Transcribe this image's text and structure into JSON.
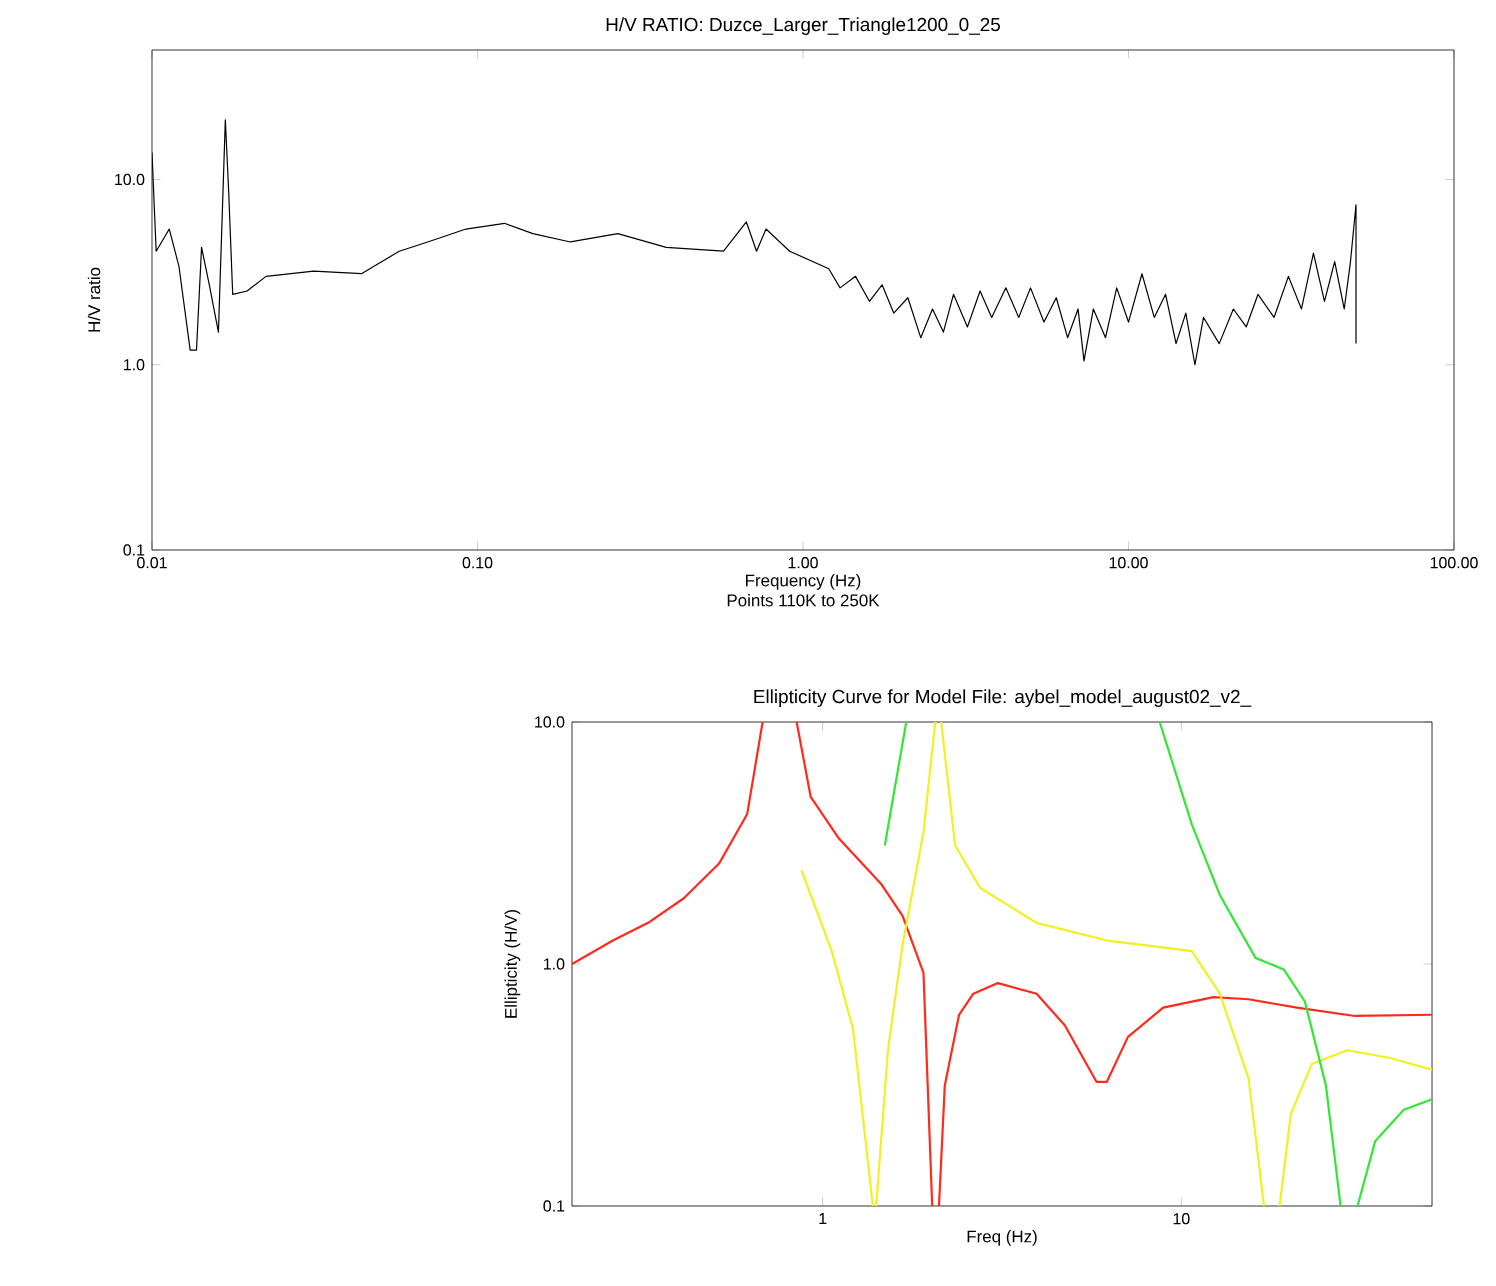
{
  "chart_data": [
    {
      "type": "line",
      "title": "H/V RATIO: Duzce_Larger_Triangle1200_0_25",
      "xlabel": "Frequency (Hz)",
      "ylabel": "H/V ratio",
      "annotations": [
        "Points 110K to 250K"
      ],
      "log": "xy",
      "xlim": [
        0.01,
        100
      ],
      "ylim": [
        0.1,
        50
      ],
      "xticks": [
        {
          "value": 0.01,
          "label": "0.01"
        },
        {
          "value": 0.1,
          "label": "0.10"
        },
        {
          "value": 1,
          "label": "1.00"
        },
        {
          "value": 10,
          "label": "10.00"
        },
        {
          "value": 100,
          "label": "100.00"
        }
      ],
      "yticks": [
        {
          "value": 0.1,
          "label": "0.1"
        },
        {
          "value": 1,
          "label": "1.0"
        },
        {
          "value": 10,
          "label": "10.0"
        }
      ],
      "series": [
        {
          "color": "#000000",
          "x": [
            0.01,
            0.0103,
            0.0113,
            0.0121,
            0.0131,
            0.0137,
            0.0142,
            0.015,
            0.016,
            0.0168,
            0.0172,
            0.0177,
            0.0196,
            0.0224,
            0.0314,
            0.044,
            0.0575,
            0.0703,
            0.0922,
            0.121,
            0.148,
            0.193,
            0.27,
            0.38,
            0.57,
            0.67,
            0.72,
            0.77,
            0.91,
            1.2,
            1.3,
            1.45,
            1.6,
            1.75,
            1.9,
            2.1,
            2.3,
            2.5,
            2.7,
            2.9,
            3.2,
            3.5,
            3.8,
            4.2,
            4.6,
            5.0,
            5.5,
            6.0,
            6.5,
            7.0,
            7.3,
            7.8,
            8.5,
            9.2,
            10,
            11,
            12,
            13,
            14,
            15,
            16,
            17,
            19,
            21,
            23,
            25,
            28,
            31,
            34,
            37,
            40,
            43,
            46,
            48,
            50,
            50
          ],
          "values": [
            14,
            4.1,
            5.4,
            3.4,
            1.2,
            1.2,
            4.3,
            2.7,
            1.5,
            21,
            8.7,
            2.4,
            2.5,
            3.0,
            3.2,
            3.1,
            4.1,
            4.6,
            5.4,
            5.8,
            5.1,
            4.6,
            5.1,
            4.3,
            4.1,
            5.9,
            4.1,
            5.4,
            4.1,
            3.3,
            2.6,
            3.0,
            2.2,
            2.7,
            1.9,
            2.3,
            1.4,
            2.0,
            1.5,
            2.4,
            1.6,
            2.5,
            1.8,
            2.6,
            1.8,
            2.6,
            1.7,
            2.3,
            1.4,
            2.0,
            1.05,
            2.0,
            1.4,
            2.6,
            1.7,
            3.1,
            1.8,
            2.4,
            1.3,
            1.9,
            1.0,
            1.8,
            1.3,
            2.0,
            1.6,
            2.4,
            1.8,
            3.0,
            2.0,
            4.0,
            2.2,
            3.6,
            2.0,
            3.5,
            7.3,
            1.3
          ]
        }
      ]
    },
    {
      "type": "line",
      "title": "Ellipticity Curve for Model File: aybel_model_august02_v2_",
      "xlabel": "Freq (Hz)",
      "ylabel": "Ellipticity (H/V)",
      "log": "xy",
      "xlim": [
        0.2,
        50
      ],
      "ylim": [
        0.1,
        10
      ],
      "xticks": [
        1,
        10
      ],
      "yticks": [
        {
          "value": 0.1,
          "label": "0.1"
        },
        {
          "value": 1,
          "label": "1.0"
        },
        {
          "value": 10,
          "label": "10.0"
        }
      ],
      "series": [
        {
          "color": "#ff2a1a",
          "x": [
            0.2,
            0.26,
            0.326,
            0.41,
            0.514,
            0.616,
            0.68,
            null,
            0.846,
            0.926,
            1.11,
            1.46,
            1.67,
            1.91,
            2.02,
            null,
            2.11,
            2.19,
            2.4,
            2.63,
            3.08,
            3.95,
            4.73,
            5.8,
            6.2,
            7.1,
            8.9,
            12.3,
            15.4,
            21,
            30.5,
            50
          ],
          "values": [
            1.0,
            1.25,
            1.48,
            1.87,
            2.6,
            4.17,
            10,
            null,
            10,
            4.9,
            3.3,
            2.13,
            1.58,
            0.92,
            0.1,
            null,
            0.1,
            0.315,
            0.617,
            0.754,
            0.834,
            0.754,
            0.558,
            0.326,
            0.326,
            0.5,
            0.66,
            0.73,
            0.715,
            0.66,
            0.61,
            0.617
          ]
        },
        {
          "color": "#f2f020",
          "x": [
            0.873,
            1.06,
            1.215,
            1.38,
            null,
            1.41,
            1.52,
            1.67,
            1.91,
            2.06,
            null,
            2.14,
            2.34,
            2.75,
            3.95,
            6.2,
            7.8,
            10.7,
            12.8,
            15.4,
            17,
            null,
            18.8,
            20.2,
            23.1,
            29,
            38,
            50
          ],
          "values": [
            2.44,
            1.13,
            0.54,
            0.1,
            null,
            0.1,
            0.44,
            1.2,
            3.5,
            10,
            null,
            10,
            3.09,
            2.06,
            1.48,
            1.25,
            1.2,
            1.13,
            0.754,
            0.337,
            0.1,
            null,
            0.1,
            0.24,
            0.386,
            0.44,
            0.41,
            0.366
          ]
        },
        {
          "color": "#33e633",
          "x": [
            1.49,
            1.71,
            null,
            8.7,
            10.7,
            12.8,
            16.1,
            19.3,
            22.1,
            25.3,
            27.8,
            null,
            31,
            34.7,
            41.7,
            50
          ],
          "values": [
            3.09,
            10,
            null,
            10,
            3.77,
            1.93,
            1.06,
            0.95,
            0.7,
            0.315,
            0.1,
            null,
            0.1,
            0.185,
            0.25,
            0.276
          ]
        }
      ]
    }
  ]
}
